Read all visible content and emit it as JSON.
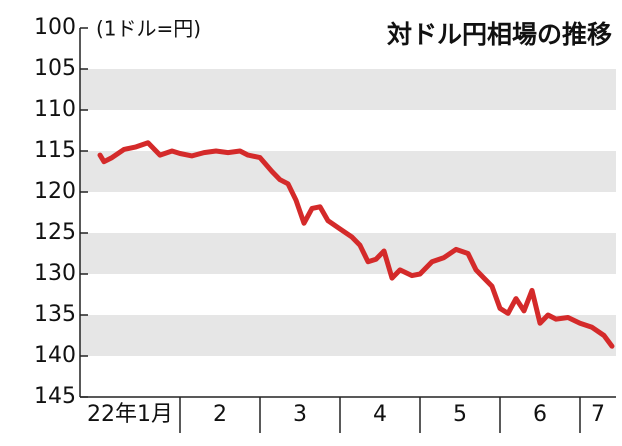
{
  "chart_data": {
    "type": "line",
    "title": "対ドル円相場の推移",
    "y_label": "(1ドル=円)",
    "y_inverted": true,
    "ylim": [
      100,
      145
    ],
    "yticks": [
      100,
      105,
      110,
      115,
      120,
      125,
      130,
      135,
      140,
      145
    ],
    "bands": true,
    "xlim": [
      1,
      7.45
    ],
    "xticks": [
      {
        "value": 1,
        "label": "22年1月"
      },
      {
        "value": 2,
        "label": "2"
      },
      {
        "value": 3,
        "label": "3"
      },
      {
        "value": 4,
        "label": "4"
      },
      {
        "value": 5,
        "label": "5"
      },
      {
        "value": 6,
        "label": "6"
      },
      {
        "value": 7,
        "label": "7"
      }
    ],
    "x": [
      1.0,
      1.05,
      1.15,
      1.3,
      1.45,
      1.6,
      1.75,
      1.9,
      2.0,
      2.15,
      2.3,
      2.45,
      2.6,
      2.75,
      2.85,
      3.0,
      3.15,
      3.25,
      3.35,
      3.45,
      3.55,
      3.65,
      3.75,
      3.85,
      4.0,
      4.15,
      4.25,
      4.35,
      4.45,
      4.55,
      4.65,
      4.75,
      4.9,
      5.0,
      5.15,
      5.3,
      5.45,
      5.6,
      5.7,
      5.8,
      5.9,
      6.0,
      6.1,
      6.2,
      6.3,
      6.4,
      6.5,
      6.6,
      6.7,
      6.85,
      7.0,
      7.15,
      7.3,
      7.4
    ],
    "series": [
      {
        "color": "#d42a2a",
        "values": [
          115.5,
          116.3,
          115.8,
          114.8,
          114.5,
          114.0,
          115.5,
          115.0,
          115.3,
          115.6,
          115.2,
          115.0,
          115.2,
          115.0,
          115.5,
          115.8,
          117.5,
          118.5,
          119.0,
          121.0,
          123.8,
          122.0,
          121.8,
          123.5,
          124.5,
          125.5,
          126.5,
          128.5,
          128.2,
          127.2,
          130.5,
          129.5,
          130.2,
          130.0,
          128.5,
          128.0,
          127.0,
          127.5,
          129.5,
          130.5,
          131.5,
          134.2,
          134.8,
          133.0,
          134.5,
          132.0,
          136.0,
          135.0,
          135.5,
          135.3,
          136.0,
          136.5,
          137.5,
          138.8
        ]
      }
    ]
  }
}
